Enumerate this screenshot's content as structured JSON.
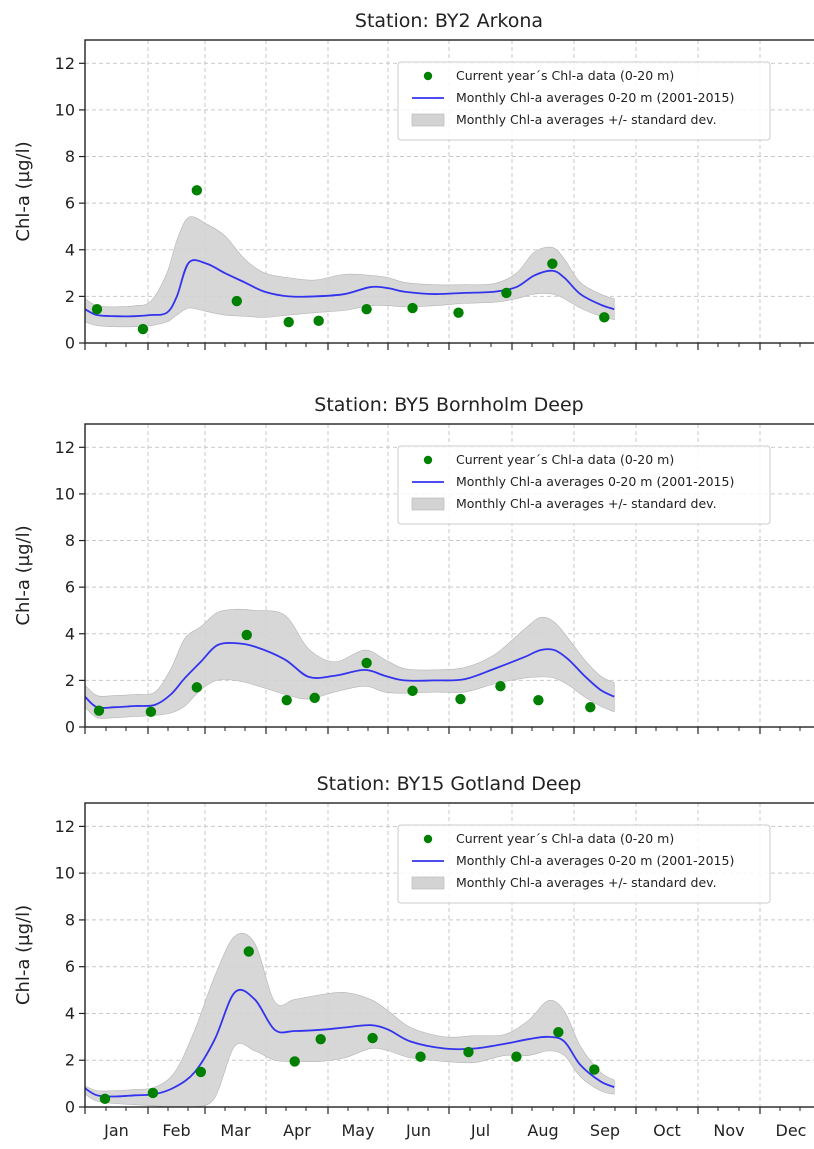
{
  "chart_data": [
    {
      "type": "line",
      "title": "Station: BY2 Arkona",
      "ylabel": "Chl-a (µg/l)",
      "xlabel": "",
      "ylim": [
        0,
        13
      ],
      "xlim": [
        0,
        365
      ],
      "yticks": [
        0,
        2,
        4,
        6,
        8,
        10,
        12
      ],
      "legend_position": "top-right",
      "grid": true,
      "series": [
        {
          "name": "Current year´s Chl-a data (0-20 m)",
          "kind": "scatter",
          "color": "#008000",
          "x": [
            6,
            29,
            56,
            76,
            102,
            117,
            141,
            164,
            187,
            211,
            234,
            260
          ],
          "y": [
            1.45,
            0.6,
            6.55,
            1.8,
            0.9,
            0.95,
            1.45,
            1.5,
            1.3,
            2.15,
            3.4,
            1.1
          ]
        },
        {
          "name": "Monthly Chl-a averages 0-20 m (2001-2015)",
          "kind": "line",
          "color": "#3333ee",
          "x": [
            0,
            6,
            15,
            25,
            33,
            41,
            46,
            52,
            61,
            70,
            80,
            90,
            102,
            115,
            130,
            143,
            152,
            160,
            175,
            190,
            205,
            216,
            225,
            234,
            240,
            248,
            258,
            265
          ],
          "y": [
            1.45,
            1.2,
            1.15,
            1.15,
            1.2,
            1.3,
            2.0,
            3.45,
            3.4,
            3.0,
            2.6,
            2.2,
            2.0,
            2.0,
            2.1,
            2.4,
            2.35,
            2.2,
            2.1,
            2.15,
            2.2,
            2.4,
            2.9,
            3.1,
            2.8,
            2.1,
            1.65,
            1.45
          ]
        },
        {
          "name": "Monthly Chl-a averages +/- standard dev.",
          "kind": "band",
          "color": "#d3d3d3",
          "x": [
            0,
            6,
            15,
            25,
            33,
            41,
            46,
            52,
            61,
            70,
            80,
            90,
            102,
            115,
            130,
            143,
            152,
            160,
            175,
            190,
            205,
            216,
            225,
            234,
            240,
            248,
            258,
            265
          ],
          "upper": [
            1.9,
            1.6,
            1.55,
            1.6,
            1.8,
            3.0,
            4.4,
            5.4,
            5.1,
            4.6,
            3.6,
            3.0,
            2.8,
            2.7,
            2.95,
            2.9,
            2.8,
            2.6,
            2.5,
            2.5,
            2.55,
            3.0,
            3.9,
            4.1,
            3.6,
            2.6,
            2.1,
            1.9
          ],
          "lower": [
            0.9,
            0.75,
            0.7,
            0.7,
            0.75,
            0.9,
            1.2,
            1.5,
            1.35,
            1.2,
            1.15,
            1.1,
            1.2,
            1.3,
            1.4,
            1.6,
            1.6,
            1.55,
            1.6,
            1.7,
            1.75,
            1.9,
            2.1,
            2.1,
            1.9,
            1.5,
            1.15,
            1.0
          ]
        }
      ]
    },
    {
      "type": "line",
      "title": "Station: BY5 Bornholm Deep",
      "ylabel": "Chl-a (µg/l)",
      "xlabel": "",
      "ylim": [
        0,
        13
      ],
      "xlim": [
        0,
        365
      ],
      "yticks": [
        0,
        2,
        4,
        6,
        8,
        10,
        12
      ],
      "legend_position": "top-right",
      "grid": true,
      "series": [
        {
          "name": "Current year´s Chl-a data (0-20 m)",
          "kind": "scatter",
          "color": "#008000",
          "x": [
            7,
            33,
            56,
            81,
            101,
            115,
            141,
            164,
            188,
            208,
            227,
            253
          ],
          "y": [
            0.7,
            0.65,
            1.7,
            3.95,
            1.15,
            1.25,
            2.75,
            1.55,
            1.2,
            1.75,
            1.15,
            0.85
          ]
        },
        {
          "name": "Monthly Chl-a averages 0-20 m (2001-2015)",
          "kind": "line",
          "color": "#3333ee",
          "x": [
            0,
            6,
            15,
            25,
            35,
            43,
            50,
            58,
            66,
            75,
            85,
            100,
            112,
            125,
            140,
            150,
            160,
            175,
            190,
            205,
            220,
            228,
            235,
            242,
            250,
            258,
            265
          ],
          "y": [
            1.3,
            0.85,
            0.85,
            0.9,
            0.95,
            1.4,
            2.1,
            2.8,
            3.5,
            3.6,
            3.45,
            2.9,
            2.15,
            2.2,
            2.45,
            2.2,
            2.0,
            2.0,
            2.05,
            2.5,
            3.0,
            3.3,
            3.3,
            2.9,
            2.2,
            1.6,
            1.3
          ]
        },
        {
          "name": "Monthly Chl-a averages +/- standard dev.",
          "kind": "band",
          "color": "#d3d3d3",
          "x": [
            0,
            6,
            15,
            25,
            35,
            43,
            50,
            58,
            66,
            75,
            85,
            100,
            112,
            125,
            140,
            150,
            160,
            175,
            190,
            205,
            220,
            228,
            235,
            242,
            250,
            258,
            265
          ],
          "upper": [
            1.8,
            1.35,
            1.35,
            1.4,
            1.5,
            2.5,
            3.8,
            4.3,
            4.9,
            5.05,
            5.0,
            4.8,
            3.35,
            2.8,
            3.3,
            2.9,
            2.5,
            2.45,
            2.55,
            3.1,
            4.2,
            4.7,
            4.5,
            3.8,
            2.9,
            2.2,
            1.9
          ],
          "lower": [
            0.85,
            0.4,
            0.4,
            0.45,
            0.5,
            0.6,
            0.9,
            1.6,
            2.0,
            2.0,
            1.8,
            1.4,
            1.2,
            1.5,
            1.75,
            1.5,
            1.45,
            1.5,
            1.5,
            1.85,
            2.1,
            2.15,
            2.1,
            1.8,
            1.3,
            0.9,
            0.65
          ]
        }
      ]
    },
    {
      "type": "line",
      "title": "Station: BY15 Gotland Deep",
      "ylabel": "Chl-a (µg/l)",
      "xlabel": "",
      "ylim": [
        0,
        13
      ],
      "xlim": [
        0,
        365
      ],
      "yticks": [
        0,
        2,
        4,
        6,
        8,
        10,
        12
      ],
      "x_categories": [
        "Jan",
        "Feb",
        "Mar",
        "Apr",
        "May",
        "Jun",
        "Jul",
        "Aug",
        "Sep",
        "Oct",
        "Nov",
        "Dec"
      ],
      "legend_position": "top-right",
      "grid": true,
      "series": [
        {
          "name": "Current year´s Chl-a data (0-20 m)",
          "kind": "scatter",
          "color": "#008000",
          "x": [
            10,
            34,
            58,
            82,
            105,
            118,
            144,
            168,
            192,
            216,
            237,
            255
          ],
          "y": [
            0.35,
            0.6,
            1.5,
            6.65,
            1.95,
            2.9,
            2.95,
            2.15,
            2.35,
            2.15,
            3.2,
            1.6
          ]
        },
        {
          "name": "Monthly Chl-a averages 0-20 m (2001-2015)",
          "kind": "line",
          "color": "#3333ee",
          "x": [
            0,
            6,
            15,
            25,
            35,
            45,
            55,
            65,
            75,
            85,
            95,
            105,
            118,
            130,
            143,
            152,
            163,
            180,
            195,
            210,
            222,
            232,
            240,
            248,
            258,
            265
          ],
          "y": [
            0.8,
            0.5,
            0.45,
            0.5,
            0.55,
            0.85,
            1.5,
            2.9,
            4.9,
            4.6,
            3.3,
            3.25,
            3.3,
            3.4,
            3.5,
            3.3,
            2.8,
            2.5,
            2.5,
            2.7,
            2.9,
            3.0,
            2.8,
            1.8,
            1.1,
            0.85
          ]
        },
        {
          "name": "Monthly Chl-a averages +/- standard dev.",
          "kind": "band",
          "color": "#d3d3d3",
          "x": [
            0,
            6,
            15,
            25,
            35,
            45,
            55,
            65,
            75,
            85,
            95,
            105,
            118,
            130,
            143,
            152,
            163,
            180,
            195,
            210,
            222,
            232,
            240,
            248,
            258,
            265
          ],
          "upper": [
            0.9,
            0.7,
            0.7,
            0.75,
            0.85,
            1.5,
            3.3,
            5.6,
            7.3,
            7.0,
            4.5,
            4.6,
            4.8,
            4.9,
            4.6,
            4.1,
            3.4,
            3.0,
            3.05,
            3.1,
            3.7,
            4.55,
            4.1,
            2.6,
            1.5,
            1.15
          ],
          "lower": [
            0.55,
            0.25,
            0.15,
            0.1,
            0.05,
            0.0,
            0.0,
            0.4,
            2.6,
            2.4,
            2.0,
            1.95,
            1.95,
            2.1,
            2.5,
            2.4,
            2.1,
            1.95,
            1.9,
            2.2,
            2.2,
            2.4,
            2.2,
            1.3,
            0.7,
            0.55
          ]
        }
      ]
    }
  ]
}
